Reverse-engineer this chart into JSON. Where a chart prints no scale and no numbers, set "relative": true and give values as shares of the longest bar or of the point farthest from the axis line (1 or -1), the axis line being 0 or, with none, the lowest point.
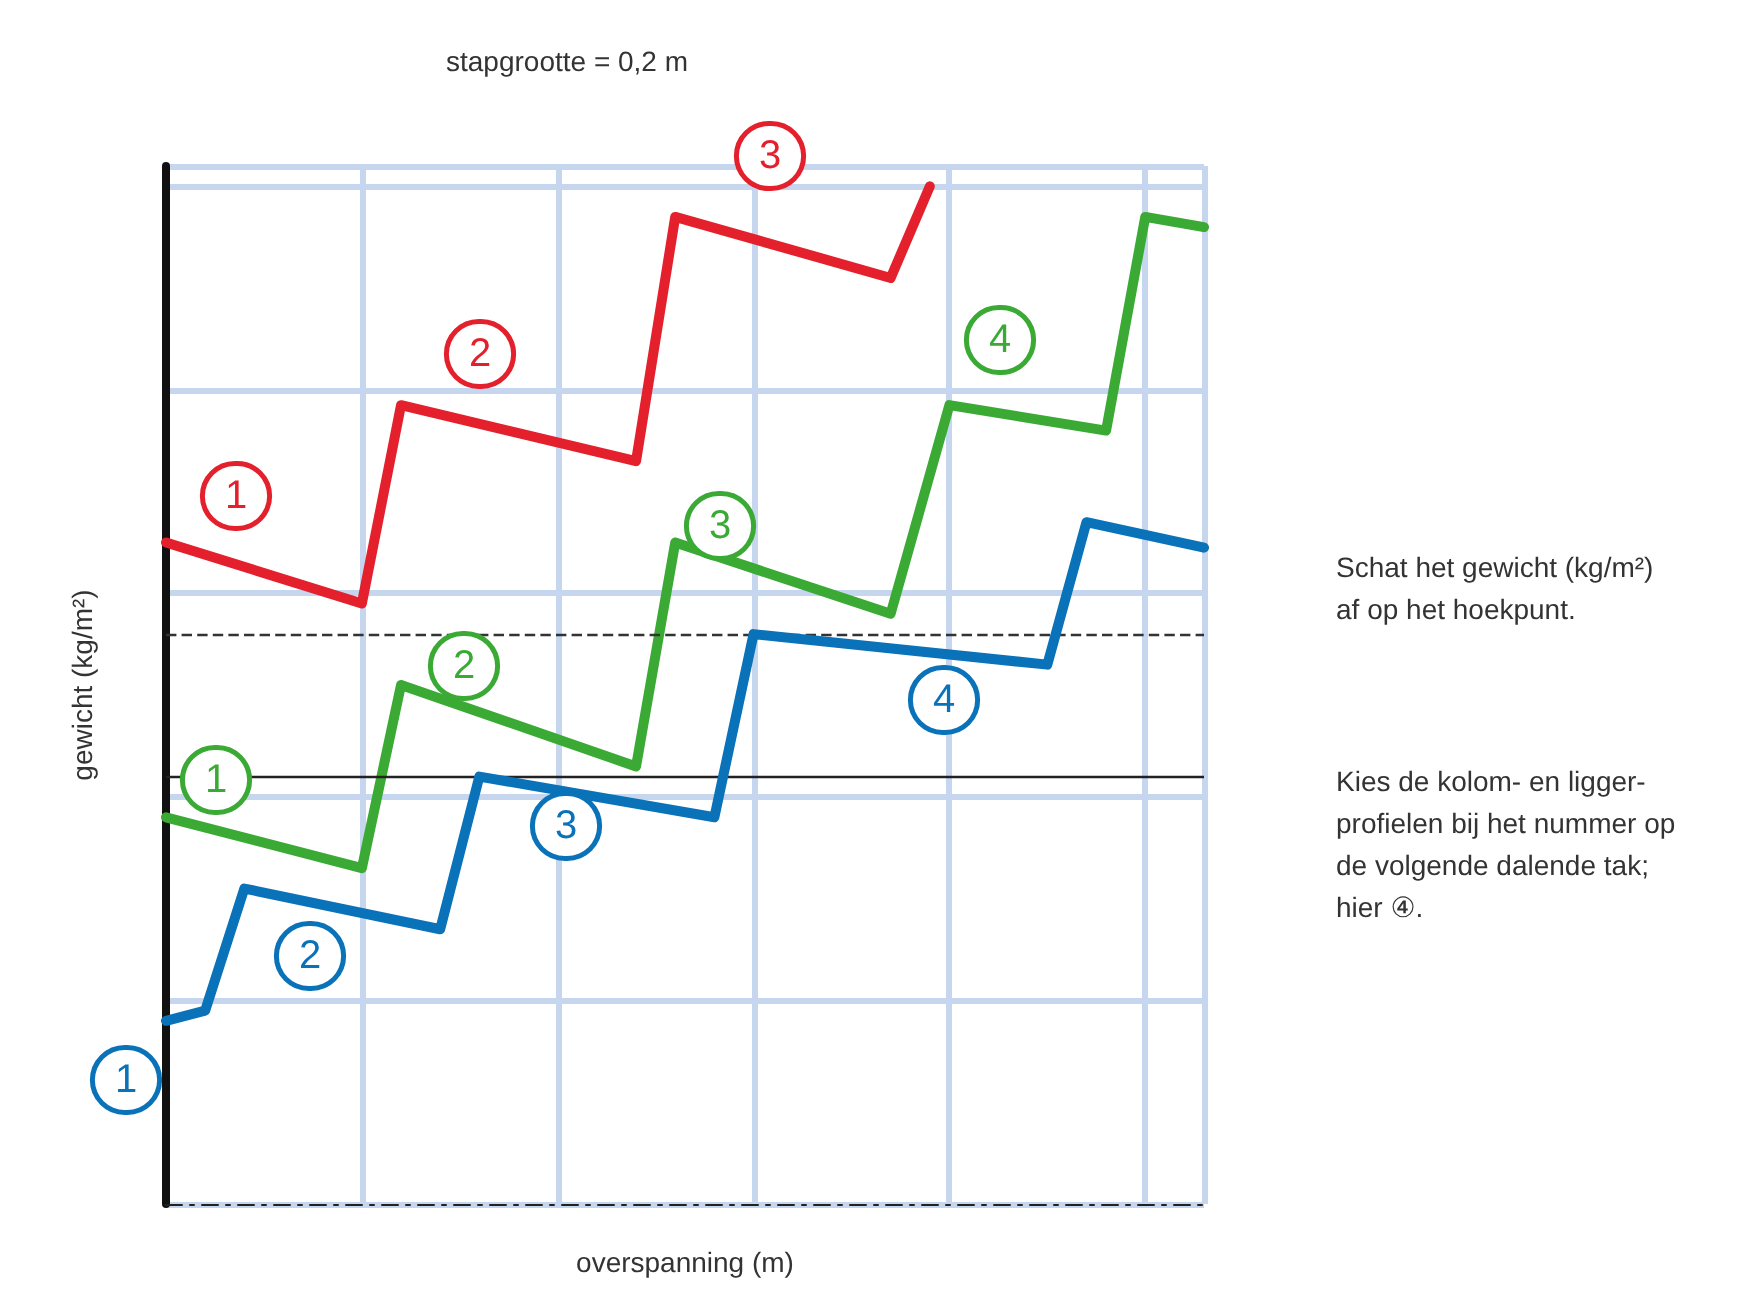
{
  "chart_data": {
    "type": "line",
    "relative": true,
    "xlabel": "overspanning (m)",
    "ylabel": "gewicht (kg/m²)",
    "grid": true,
    "marker": "none",
    "line_style": "solid",
    "annotations": [
      "stapgrootte = 0,2 m",
      "Schat het gewicht (kg/m²)\naf op het hoekpunt.",
      "Kies de kolom- en ligger-\nprofielen bij het nummer op\nde volgende dalende tak;\nhier ④.",
      "1",
      "2",
      "3",
      "1",
      "2",
      "3",
      "4",
      "1",
      "2",
      "3",
      "4"
    ],
    "ref_lines": [
      {
        "axis": "y",
        "value": 0.56,
        "color": "#333333",
        "line_style": "dashed"
      },
      {
        "axis": "y",
        "value": 0.42,
        "color": "#222222",
        "line_style": "solid"
      }
    ],
    "categories": [
      null,
      null,
      null,
      null,
      null,
      null,
      null,
      null,
      null,
      null,
      null,
      null,
      null,
      null,
      null,
      null,
      null,
      null,
      null,
      null,
      null,
      null,
      null,
      null,
      null,
      null,
      null,
      null,
      null,
      null,
      null,
      null,
      null,
      null,
      null,
      null,
      null,
      null,
      null,
      null,
      null,
      null,
      null,
      null,
      null,
      null,
      null,
      null,
      null,
      null,
      null,
      null,
      null,
      null
    ],
    "series": [
      {
        "color": "#e3202c",
        "values": [
          0.65,
          null,
          null,
          null,
          null,
          null,
          null,
          null,
          null,
          null,
          0.59,
          null,
          0.785,
          null,
          null,
          null,
          null,
          null,
          null,
          null,
          null,
          null,
          null,
          null,
          0.73,
          null,
          0.97,
          null,
          null,
          null,
          null,
          null,
          null,
          null,
          null,
          null,
          null,
          0.91,
          null,
          1,
          null,
          null,
          null,
          null,
          null,
          null,
          null,
          null,
          null,
          null,
          null,
          null,
          null,
          null
        ]
      },
      {
        "color": "#3aaa35",
        "values": [
          0.38,
          null,
          null,
          null,
          null,
          null,
          null,
          null,
          null,
          null,
          0.33,
          null,
          0.51,
          null,
          null,
          null,
          null,
          null,
          null,
          null,
          null,
          null,
          null,
          null,
          0.43,
          null,
          0.65,
          null,
          null,
          null,
          null,
          null,
          null,
          null,
          null,
          null,
          null,
          0.58,
          null,
          null,
          0.785,
          null,
          null,
          null,
          null,
          null,
          null,
          null,
          0.76,
          null,
          0.97,
          null,
          null,
          0.96
        ]
      },
      {
        "color": "#0a72b8",
        "values": [
          0.18,
          null,
          0.19,
          null,
          0.31,
          null,
          null,
          null,
          null,
          null,
          null,
          null,
          null,
          null,
          0.27,
          null,
          0.42,
          null,
          null,
          null,
          null,
          null,
          null,
          null,
          null,
          null,
          null,
          null,
          0.38,
          null,
          0.56,
          null,
          null,
          null,
          null,
          null,
          null,
          null,
          null,
          null,
          null,
          null,
          null,
          null,
          null,
          0.53,
          null,
          0.67,
          null,
          null,
          null,
          null,
          null,
          0.645
        ]
      }
    ]
  }
}
